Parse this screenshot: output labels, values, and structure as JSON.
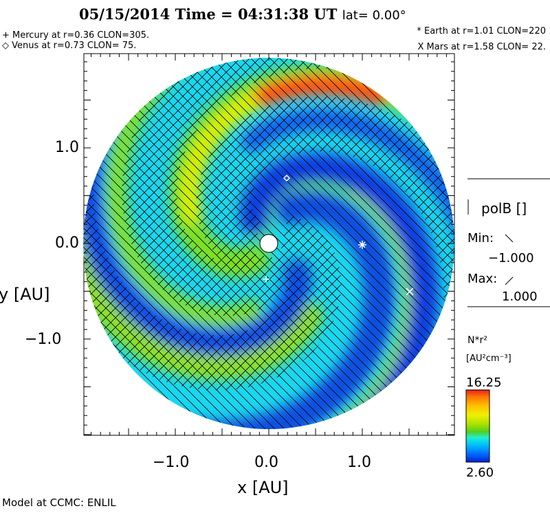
{
  "chart_data": {
    "type": "heatmap",
    "title": {
      "date": "05/15/2014",
      "time_label": "Time = 04:31:38 UT",
      "lat_label": "lat= 0.00°"
    },
    "planets": [
      {
        "symbol": "+",
        "text": "+ Mercury at r=0.36 CLON=305.",
        "r": 0.36,
        "clon": 305
      },
      {
        "symbol": "◇",
        "text": "◇ Venus at r=0.73 CLON= 75.",
        "r": 0.73,
        "clon": 75
      },
      {
        "symbol": "*",
        "text": "* Earth at  r=1.01 CLON=220",
        "r": 1.01,
        "clon": 220
      },
      {
        "symbol": "X",
        "text": "X Mars at r=1.58 CLON= 22.",
        "r": 1.58,
        "clon": 22
      }
    ],
    "xlabel": "x [AU]",
    "ylabel": "y [AU]",
    "xticks": [
      "−1.0",
      "0.0",
      "1.0"
    ],
    "yticks": [
      "1.0",
      "0.0",
      "−1.0"
    ],
    "xlim": [
      -2,
      2
    ],
    "ylim": [
      -2,
      2
    ],
    "contour_legend": {
      "label": "polB []",
      "min_label": "Min:",
      "min": "−1.000",
      "max_label": "Max:",
      "max": "1.000"
    },
    "colorbar": {
      "quantity": "N*r²",
      "units": "[AU²cm⁻³]",
      "max": "16.25",
      "min": "2.60",
      "colors": [
        "#e8201c",
        "#ff7a00",
        "#ffc000",
        "#f0f000",
        "#a8e000",
        "#50d020",
        "#20f0d0",
        "#00c0ff",
        "#0070ff",
        "#0020d0"
      ]
    },
    "footer": "Model at CCMC: ENLIL"
  }
}
